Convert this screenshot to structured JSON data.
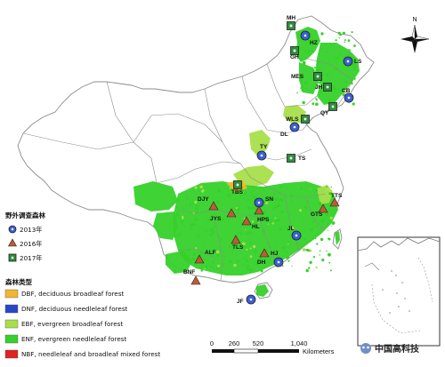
{
  "map": {
    "north_label": "N",
    "colors": {
      "background": "#ffffff",
      "province_fill": "#ffffff",
      "province_stroke": "#8c8c8c",
      "forest": "#35d12a",
      "forest_light": "#a6df4a",
      "circle_fill": "#3b5fd6",
      "triangle_fill": "#c05a34",
      "square_fill": "#2e8d3a"
    },
    "sites": [
      {
        "code": "MH",
        "year": "2017"
      },
      {
        "code": "HZ",
        "year": "2013"
      },
      {
        "code": "GH",
        "year": "2017"
      },
      {
        "code": "LS",
        "year": "2013"
      },
      {
        "code": "MES",
        "year": "2017"
      },
      {
        "code": "JH",
        "year": "2017"
      },
      {
        "code": "CB",
        "year": "2013"
      },
      {
        "code": "QY",
        "year": "2017"
      },
      {
        "code": "WLS",
        "year": "2017"
      },
      {
        "code": "DL",
        "year": "2013"
      },
      {
        "code": "TY",
        "year": "2013"
      },
      {
        "code": "TS",
        "year": "2017"
      },
      {
        "code": "TBS",
        "year": "2017"
      },
      {
        "code": "SN",
        "year": "2013"
      },
      {
        "code": "DJY",
        "year": "2016"
      },
      {
        "code": "JYS",
        "year": "2016"
      },
      {
        "code": "HL",
        "year": "2016"
      },
      {
        "code": "HPS",
        "year": "2016"
      },
      {
        "code": "GTS",
        "year": "2016"
      },
      {
        "code": "TTS",
        "year": "2016"
      },
      {
        "code": "TLS",
        "year": "2016"
      },
      {
        "code": "HJ",
        "year": "2016"
      },
      {
        "code": "ALF",
        "year": "2016"
      },
      {
        "code": "BNF",
        "year": "2016"
      },
      {
        "code": "JL",
        "year": "2013"
      },
      {
        "code": "DH",
        "year": "2013"
      },
      {
        "code": "JF",
        "year": "2013"
      }
    ],
    "legend": {
      "survey_title": "野外调查森林",
      "years": [
        {
          "label": "2013年",
          "shape": "circle"
        },
        {
          "label": "2016年",
          "shape": "triangle"
        },
        {
          "label": "2017年",
          "shape": "square"
        }
      ],
      "forest_title": "森林类型",
      "forest_types": [
        {
          "label": "DBF, deciduous broadleaf forest",
          "color": "#f2b630"
        },
        {
          "label": "DNF, deciduous needleleaf forest",
          "color": "#2747c9"
        },
        {
          "label": "EBF, evergreen broadleaf forest",
          "color": "#a6df4a"
        },
        {
          "label": "ENF, evergreen needleleaf forest",
          "color": "#35d12a"
        },
        {
          "label": "NBF, needleleaf and broadleaf mixed forest",
          "color": "#e02222"
        }
      ]
    },
    "scale": {
      "labels": [
        "0",
        "260",
        "520",
        "1,040"
      ],
      "unit": "Kilometers"
    },
    "watermark": "中国高科技"
  }
}
